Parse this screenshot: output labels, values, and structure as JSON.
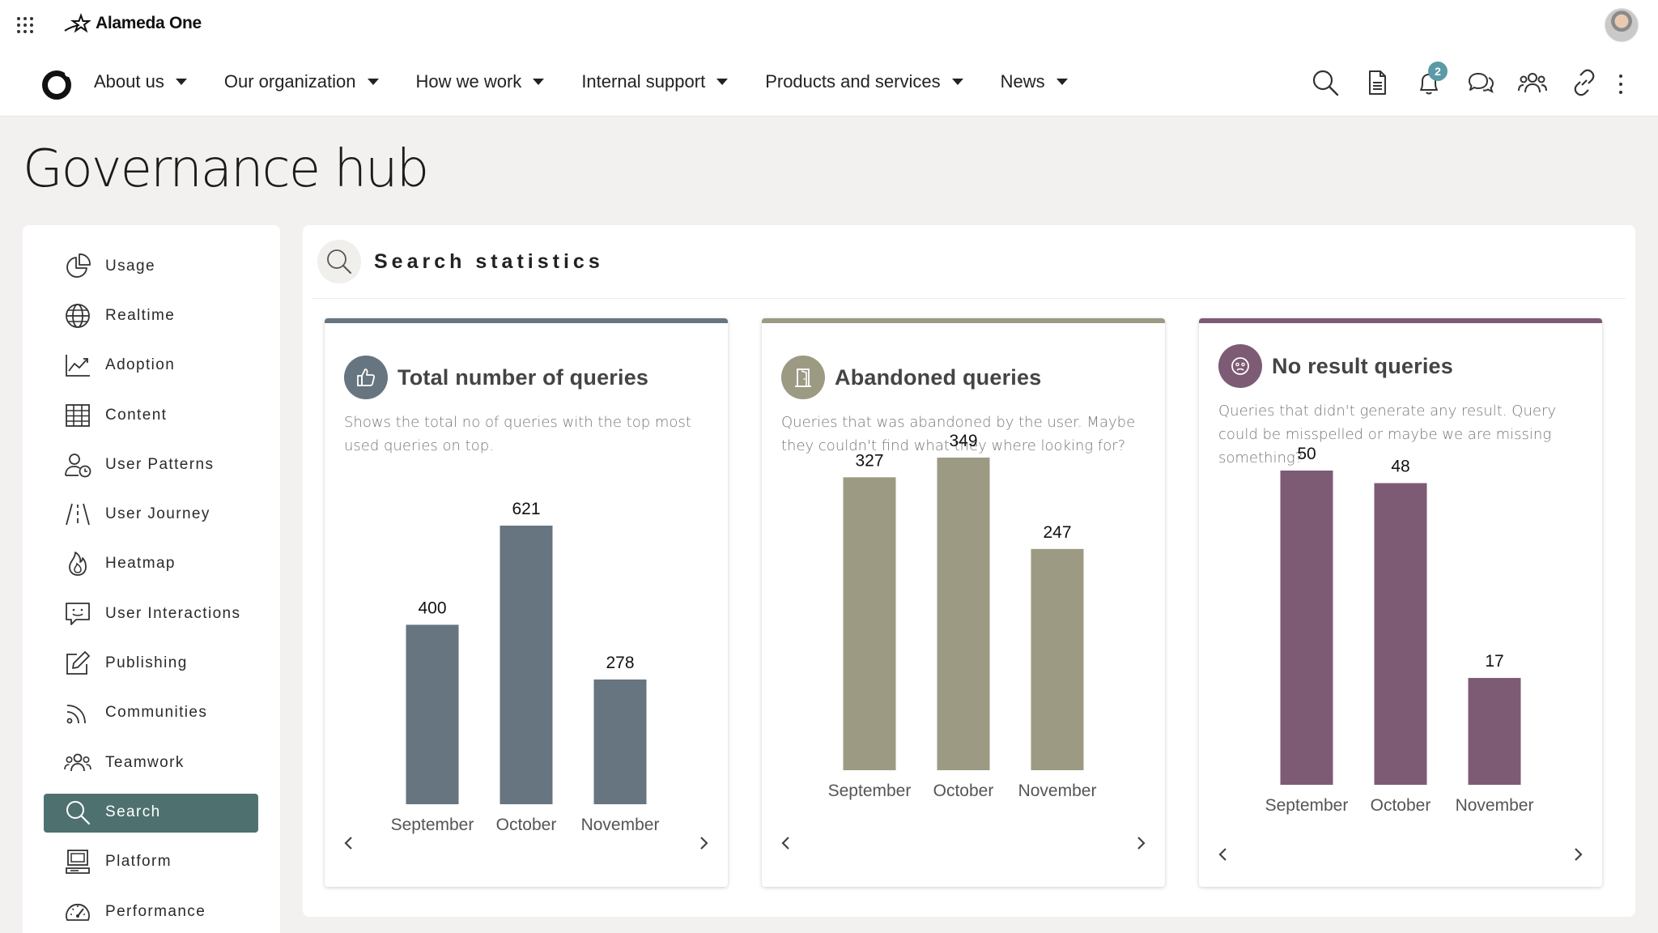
{
  "app": {
    "name": "Alameda One"
  },
  "nav": {
    "items": [
      {
        "label": "About us"
      },
      {
        "label": "Our organization"
      },
      {
        "label": "How we work"
      },
      {
        "label": "Internal support"
      },
      {
        "label": "Products and services"
      },
      {
        "label": "News"
      }
    ],
    "notification_count": "2"
  },
  "page": {
    "title": "Governance hub"
  },
  "sidebar": {
    "items": [
      {
        "label": "Usage",
        "icon": "pie-chart-icon"
      },
      {
        "label": "Realtime",
        "icon": "globe-icon"
      },
      {
        "label": "Adoption",
        "icon": "trend-chart-icon"
      },
      {
        "label": "Content",
        "icon": "table-icon"
      },
      {
        "label": "User Patterns",
        "icon": "user-clock-icon"
      },
      {
        "label": "User Journey",
        "icon": "road-icon"
      },
      {
        "label": "Heatmap",
        "icon": "flame-icon"
      },
      {
        "label": "User Interactions",
        "icon": "chat-smile-icon"
      },
      {
        "label": "Publishing",
        "icon": "edit-icon"
      },
      {
        "label": "Communities",
        "icon": "rss-icon"
      },
      {
        "label": "Teamwork",
        "icon": "team-icon"
      },
      {
        "label": "Search",
        "icon": "search-icon",
        "active": true
      },
      {
        "label": "Platform",
        "icon": "platform-icon"
      },
      {
        "label": "Performance",
        "icon": "gauge-icon"
      }
    ]
  },
  "section": {
    "title": "Search statistics"
  },
  "cards": [
    {
      "title": "Total number of queries",
      "description": "Shows the total no of queries with the top most used queries on top.",
      "icon": "thumbs-up-icon",
      "color": "#667580"
    },
    {
      "title": "Abandoned queries",
      "description": "Queries that was abandoned by the user. Maybe they couldn't find what they where looking for?",
      "icon": "door-exit-icon",
      "color": "#9c9a83"
    },
    {
      "title": "No result queries",
      "description": "Queries that didn't generate any result. Query could be misspelled or maybe we are missing something?",
      "icon": "sad-face-icon",
      "color": "#7e5b74"
    }
  ],
  "chart_data": [
    {
      "type": "bar",
      "categories": [
        "September",
        "October",
        "November"
      ],
      "values": [
        400,
        621,
        278
      ],
      "ylim": [
        0,
        621
      ]
    },
    {
      "type": "bar",
      "categories": [
        "September",
        "October",
        "November"
      ],
      "values": [
        327,
        349,
        247
      ],
      "ylim": [
        0,
        349
      ]
    },
    {
      "type": "bar",
      "categories": [
        "September",
        "October",
        "November"
      ],
      "values": [
        50,
        48,
        17
      ],
      "ylim": [
        0,
        50
      ]
    }
  ]
}
